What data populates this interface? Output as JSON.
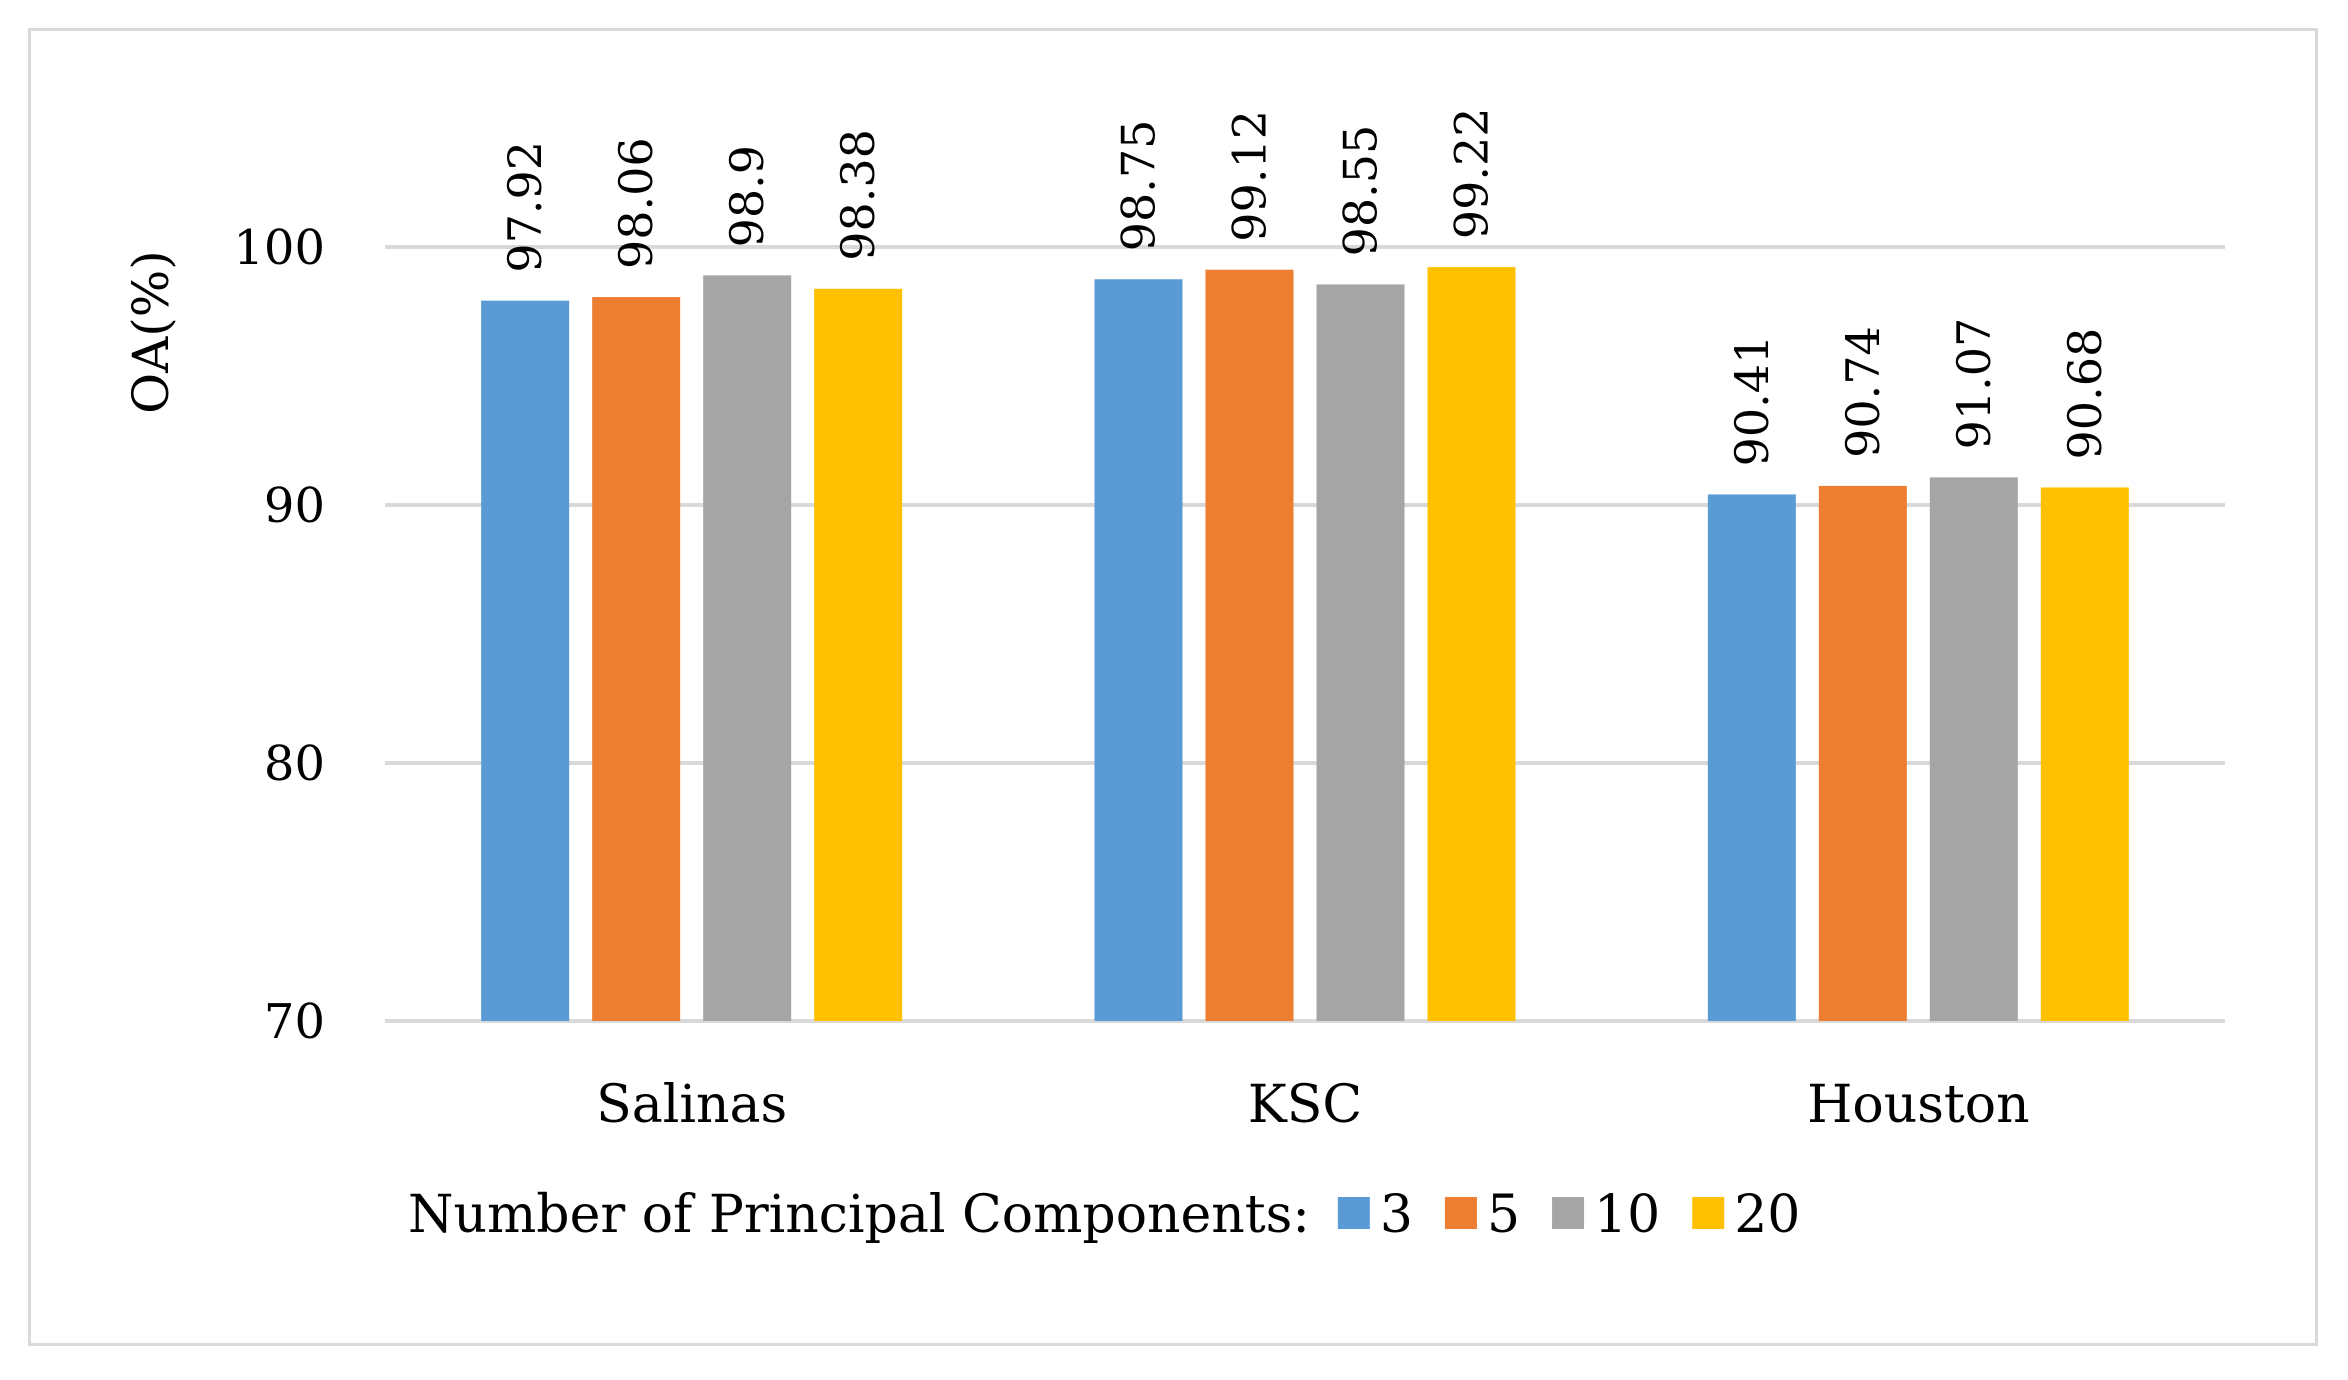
{
  "chart_data": {
    "type": "bar",
    "title": "",
    "xlabel": "",
    "ylabel": "OA(%)",
    "ylim": [
      70,
      100
    ],
    "yticks": [
      70,
      80,
      90,
      100
    ],
    "grid": true,
    "categories": [
      "Salinas",
      "KSC",
      "Houston"
    ],
    "legend_title": "Number of Principal Components:",
    "legend_position": "bottom",
    "series": [
      {
        "name": "3",
        "color": "#5b9bd5",
        "values": [
          97.92,
          98.75,
          90.41
        ],
        "labels": [
          "97.92",
          "98.75",
          "90.41"
        ]
      },
      {
        "name": "5",
        "color": "#ed7d31",
        "values": [
          98.06,
          99.12,
          90.74
        ],
        "labels": [
          "98.06",
          "99.12",
          "90.74"
        ]
      },
      {
        "name": "10",
        "color": "#a5a5a5",
        "values": [
          98.9,
          98.55,
          91.07
        ],
        "labels": [
          "98.9",
          "98.55",
          "91.07"
        ]
      },
      {
        "name": "20",
        "color": "#ffc000",
        "values": [
          98.38,
          99.22,
          90.68
        ],
        "labels": [
          "98.38",
          "99.22",
          "90.68"
        ]
      }
    ]
  }
}
